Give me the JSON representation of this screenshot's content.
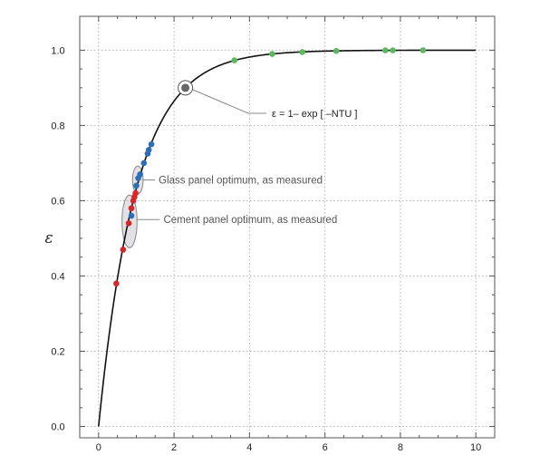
{
  "chart_data": {
    "type": "scatter",
    "title": "",
    "xlabel": "",
    "ylabel": "ε",
    "xlim": [
      -0.5,
      10.5
    ],
    "ylim": [
      -0.03,
      1.09
    ],
    "x_ticks": [
      "0",
      "2",
      "4",
      "6",
      "8",
      "10"
    ],
    "y_ticks": [
      "0.0",
      "0.2",
      "0.4",
      "0.6",
      "0.8",
      "1.0"
    ],
    "grid": true,
    "curve": {
      "label": "ε = 1– exp [ –NTU ]",
      "formula": "1 - exp(-x)",
      "x_range": [
        0,
        10
      ],
      "color": "#111111"
    },
    "series": [
      {
        "color": "#d62728",
        "points": [
          [
            0.47,
            0.38
          ],
          [
            0.65,
            0.47
          ],
          [
            0.8,
            0.54
          ],
          [
            0.87,
            0.58
          ],
          [
            0.92,
            0.6
          ],
          [
            0.95,
            0.61
          ],
          [
            0.98,
            0.62
          ]
        ]
      },
      {
        "color": "#2f6db5",
        "points": [
          [
            0.87,
            0.56
          ],
          [
            1.0,
            0.64
          ],
          [
            1.05,
            0.66
          ],
          [
            1.1,
            0.67
          ],
          [
            1.2,
            0.7
          ],
          [
            1.3,
            0.725
          ],
          [
            1.33,
            0.735
          ],
          [
            1.4,
            0.75
          ]
        ]
      },
      {
        "color": "#5cb85c",
        "points": [
          [
            3.6,
            0.973
          ],
          [
            4.6,
            0.99
          ],
          [
            5.4,
            0.995
          ],
          [
            6.3,
            0.998
          ],
          [
            7.6,
            0.9995
          ],
          [
            7.8,
            0.9996
          ],
          [
            8.6,
            0.9998
          ]
        ]
      }
    ],
    "highlight_point": {
      "x": 2.3,
      "y": 0.9
    },
    "annotations": [
      {
        "text": "Glass panel optimum, as measured",
        "x": 1.03,
        "y": 0.65
      },
      {
        "text": "Cement panel optimum, as measured",
        "x": 0.8,
        "y": 0.55
      }
    ]
  }
}
